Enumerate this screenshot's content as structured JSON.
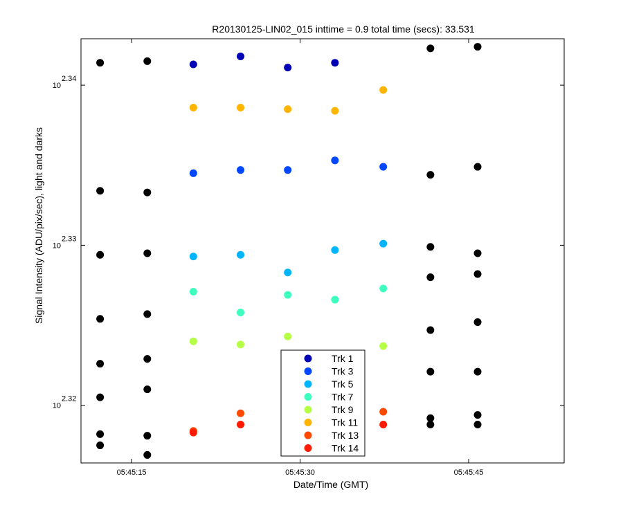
{
  "chart_data": {
    "type": "scatter",
    "title": "R20130125-LIN02_015 inttime = 0.9 total time (secs): 33.531",
    "xlabel": "Date/Time (GMT)",
    "ylabel": "Signal Intensity (ADU/pix/sec), light and darks",
    "x_unit": "seconds after 05:45:00",
    "xlim": [
      10.5,
      53.5
    ],
    "ylim_log10": [
      2.3164,
      2.3429
    ],
    "yscale": "log",
    "x_ticks": [
      {
        "value": 15,
        "label": "05:45:15"
      },
      {
        "value": 30,
        "label": "05:45:30"
      },
      {
        "value": 45,
        "label": "05:45:45"
      }
    ],
    "y_ticks": [
      {
        "exponent_value": 2.32,
        "base": "10",
        "exponent": "2.32"
      },
      {
        "exponent_value": 2.33,
        "base": "10",
        "exponent": "2.33"
      },
      {
        "exponent_value": 2.34,
        "base": "10",
        "exponent": "2.34"
      }
    ],
    "grid": false,
    "legend_position": "lower-center",
    "series": [
      {
        "name": "Trk 1",
        "color": "#0000b5",
        "x": [
          20.5,
          24.7,
          28.9,
          33.1
        ],
        "log10_y": [
          2.3413,
          2.3418,
          2.3411,
          2.3414
        ]
      },
      {
        "name": "Trk 3",
        "color": "#0047ff",
        "x": [
          20.5,
          24.7,
          28.9,
          33.1,
          37.4
        ],
        "log10_y": [
          2.3345,
          2.3347,
          2.3347,
          2.3353,
          2.3349
        ]
      },
      {
        "name": "Trk 5",
        "color": "#00b5ff",
        "x": [
          20.5,
          24.7,
          28.9,
          33.1,
          37.4
        ],
        "log10_y": [
          2.3293,
          2.3294,
          2.3283,
          2.3297,
          2.3301
        ]
      },
      {
        "name": "Trk 7",
        "color": "#3fffbf",
        "x": [
          20.5,
          24.7,
          28.9,
          33.1,
          37.4
        ],
        "log10_y": [
          2.3271,
          2.3258,
          2.3269,
          2.3266,
          2.3273
        ]
      },
      {
        "name": "Trk 9",
        "color": "#b5ff47",
        "x": [
          20.5,
          24.7,
          28.9,
          37.4
        ],
        "log10_y": [
          2.324,
          2.3238,
          2.3243,
          2.3237
        ]
      },
      {
        "name": "Trk 11",
        "color": "#ffb500",
        "x": [
          20.5,
          24.7,
          28.9,
          33.1,
          37.4
        ],
        "log10_y": [
          2.3386,
          2.3386,
          2.3385,
          2.3384,
          2.3397
        ]
      },
      {
        "name": "Trk 13",
        "color": "#ff4800",
        "x": [
          20.5,
          24.7,
          37.4
        ],
        "log10_y": [
          2.3184,
          2.3195,
          2.3196
        ]
      },
      {
        "name": "Trk 14",
        "color": "#ff1a00",
        "x": [
          20.5,
          24.7,
          37.4
        ],
        "log10_y": [
          2.3183,
          2.3188,
          2.3188
        ]
      },
      {
        "name": "Darks",
        "color": "#000000",
        "show_in_legend": false,
        "x": [
          12.2,
          12.2,
          12.2,
          12.2,
          12.2,
          12.2,
          12.2,
          12.2,
          16.4,
          16.4,
          16.4,
          16.4,
          16.4,
          16.4,
          16.4,
          16.4,
          41.6,
          41.6,
          41.6,
          41.6,
          41.6,
          41.6,
          41.6,
          41.6,
          45.8,
          45.8,
          45.8,
          45.8,
          45.8,
          45.8,
          45.8,
          45.8
        ],
        "log10_y": [
          2.3414,
          2.3334,
          2.3294,
          2.3254,
          2.3226,
          2.3205,
          2.3182,
          2.3175,
          2.3415,
          2.3333,
          2.3295,
          2.3257,
          2.3229,
          2.321,
          2.3181,
          2.3169,
          2.3423,
          2.3344,
          2.3299,
          2.328,
          2.3247,
          2.3221,
          2.3192,
          2.3188,
          2.3424,
          2.3349,
          2.3295,
          2.3282,
          2.3252,
          2.3221,
          2.3194,
          2.3188
        ]
      }
    ]
  }
}
